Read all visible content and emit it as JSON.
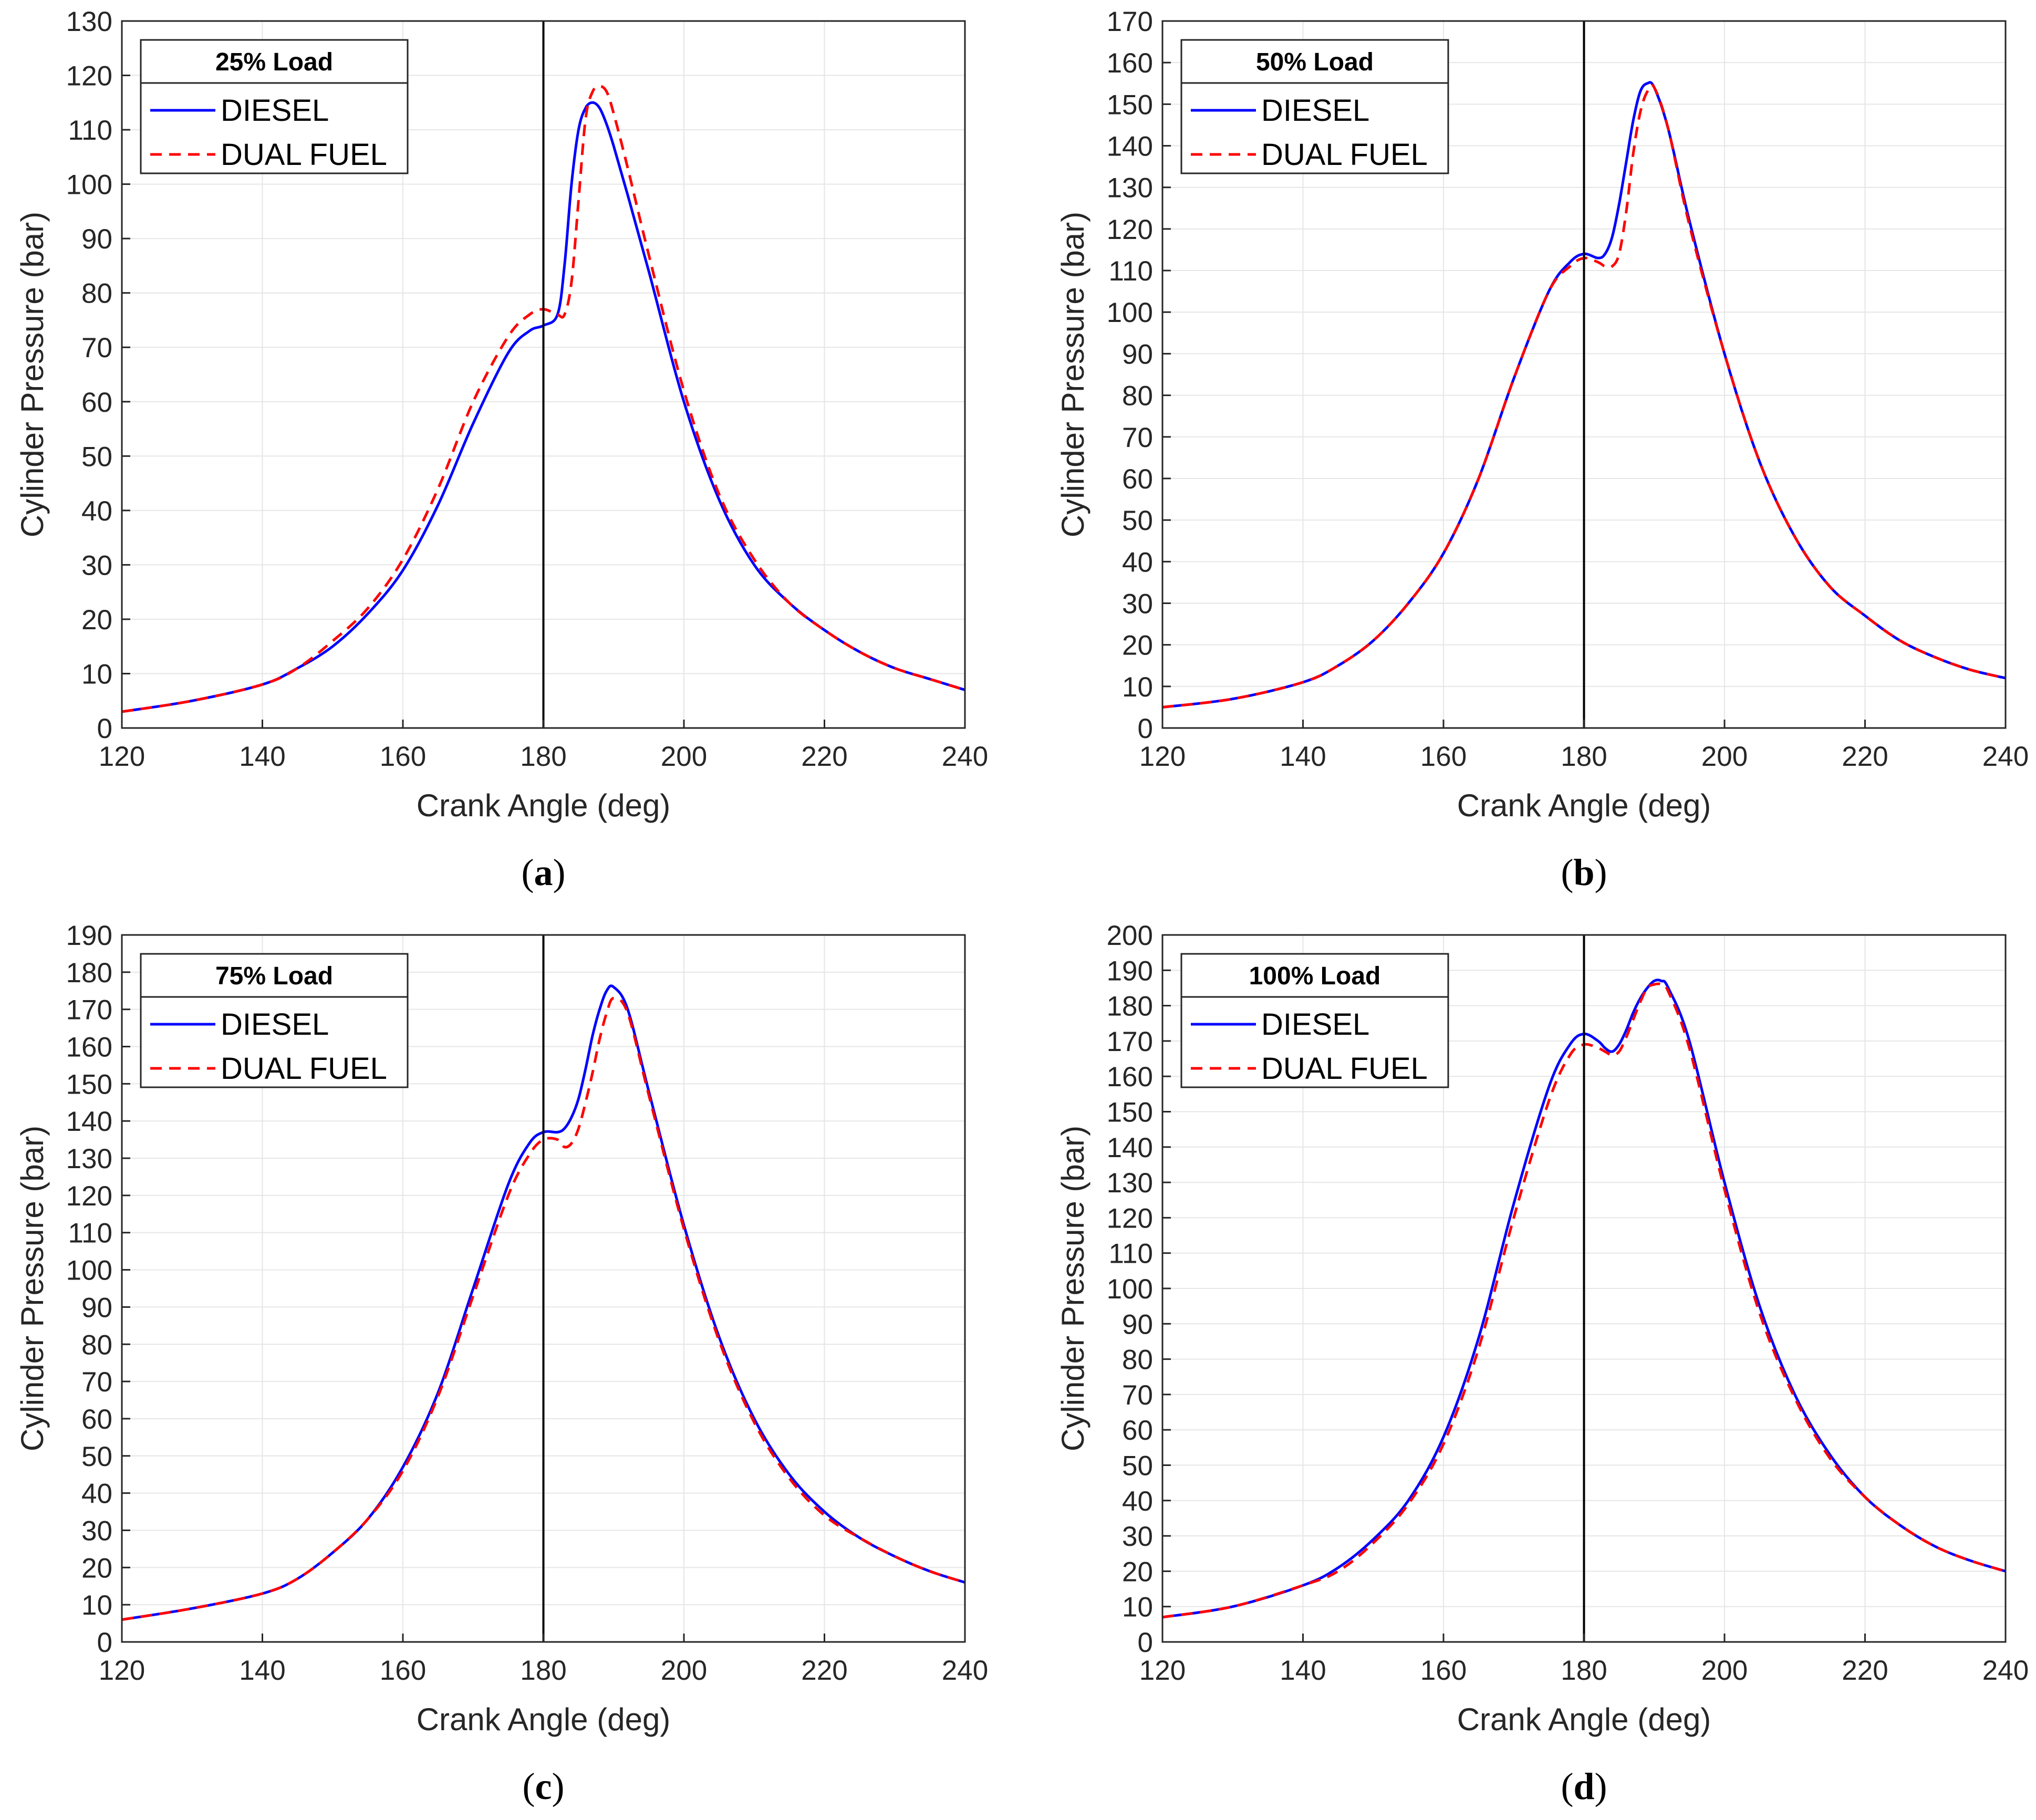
{
  "figure": {
    "panels_count": 4
  },
  "chart_data": [
    {
      "id": "a",
      "caption_letter": "a",
      "type": "line",
      "legend_title": "25% Load",
      "xlabel": "Crank Angle (deg)",
      "ylabel": "Cylinder Pressure (bar)",
      "xlim": [
        120,
        240
      ],
      "ylim": [
        0,
        130
      ],
      "xticks": [
        120,
        140,
        160,
        180,
        200,
        220,
        240
      ],
      "yticks": [
        0,
        10,
        20,
        30,
        40,
        50,
        60,
        70,
        80,
        90,
        100,
        110,
        120,
        130
      ],
      "grid": true,
      "legend_position": "top-left",
      "vertical_line_x": 180,
      "series": [
        {
          "name": "DIESEL",
          "color": "#0000ff",
          "style": "solid",
          "x": [
            120,
            130,
            140,
            145,
            150,
            155,
            160,
            165,
            170,
            175,
            178,
            180,
            182,
            183,
            184,
            185,
            186,
            187,
            188,
            189,
            190,
            192,
            195,
            200,
            205,
            210,
            215,
            220,
            225,
            230,
            235,
            240
          ],
          "y": [
            3,
            5,
            8,
            11,
            15,
            21,
            29,
            41,
            56,
            69,
            73,
            74,
            76,
            85,
            100,
            110,
            114,
            115,
            114,
            111,
            107,
            98,
            84,
            60,
            42,
            30,
            23,
            18,
            14,
            11,
            9,
            7
          ]
        },
        {
          "name": "DUAL FUEL",
          "color": "#ff0000",
          "style": "dashed",
          "x": [
            120,
            130,
            140,
            145,
            150,
            155,
            160,
            165,
            170,
            175,
            178,
            180,
            182,
            183,
            184,
            185,
            186,
            187,
            188,
            189,
            190,
            192,
            195,
            200,
            205,
            210,
            215,
            220,
            225,
            230,
            235,
            240
          ],
          "y": [
            3,
            5,
            8,
            11,
            16,
            22,
            31,
            44,
            60,
            72,
            76,
            77,
            76,
            76,
            82,
            97,
            112,
            117,
            118,
            117,
            113,
            103,
            87,
            62,
            43,
            31,
            23,
            18,
            14,
            11,
            9,
            7
          ]
        }
      ]
    },
    {
      "id": "b",
      "caption_letter": "b",
      "type": "line",
      "legend_title": "50% Load",
      "xlabel": "Crank Angle (deg)",
      "ylabel": "Cylinder Pressure (bar)",
      "xlim": [
        120,
        240
      ],
      "ylim": [
        0,
        170
      ],
      "xticks": [
        120,
        140,
        160,
        180,
        200,
        220,
        240
      ],
      "yticks": [
        0,
        10,
        20,
        30,
        40,
        50,
        60,
        70,
        80,
        90,
        100,
        110,
        120,
        130,
        140,
        150,
        160,
        170
      ],
      "grid": true,
      "legend_position": "top-left",
      "vertical_line_x": 180,
      "series": [
        {
          "name": "DIESEL",
          "color": "#0000ff",
          "style": "solid",
          "x": [
            120,
            130,
            140,
            145,
            150,
            155,
            160,
            165,
            170,
            175,
            178,
            180,
            182,
            183,
            184,
            185,
            186,
            187,
            188,
            189,
            190,
            192,
            195,
            200,
            205,
            210,
            215,
            220,
            225,
            230,
            235,
            240
          ],
          "y": [
            5,
            7,
            11,
            15,
            21,
            30,
            42,
            60,
            84,
            105,
            112,
            114,
            113,
            114,
            118,
            126,
            136,
            146,
            153,
            155,
            154,
            144,
            122,
            90,
            64,
            46,
            34,
            27,
            21,
            17,
            14,
            12
          ]
        },
        {
          "name": "DUAL FUEL",
          "color": "#ff0000",
          "style": "dashed",
          "x": [
            120,
            130,
            140,
            145,
            150,
            155,
            160,
            165,
            170,
            175,
            178,
            180,
            182,
            183,
            184,
            185,
            186,
            187,
            188,
            189,
            190,
            192,
            195,
            200,
            205,
            210,
            215,
            220,
            225,
            230,
            235,
            240
          ],
          "y": [
            5,
            7,
            11,
            15,
            21,
            30,
            42,
            60,
            84,
            105,
            111,
            113,
            112,
            111,
            111,
            114,
            124,
            138,
            148,
            153,
            154,
            144,
            121,
            90,
            64,
            46,
            34,
            27,
            21,
            17,
            14,
            12
          ]
        }
      ]
    },
    {
      "id": "c",
      "caption_letter": "c",
      "type": "line",
      "legend_title": "75% Load",
      "xlabel": "Crank Angle (deg)",
      "ylabel": "Cylinder Pressure (bar)",
      "xlim": [
        120,
        240
      ],
      "ylim": [
        0,
        190
      ],
      "xticks": [
        120,
        140,
        160,
        180,
        200,
        220,
        240
      ],
      "yticks": [
        0,
        10,
        20,
        30,
        40,
        50,
        60,
        70,
        80,
        90,
        100,
        110,
        120,
        130,
        140,
        150,
        160,
        170,
        180,
        190
      ],
      "grid": true,
      "legend_position": "top-left",
      "vertical_line_x": 180,
      "series": [
        {
          "name": "DIESEL",
          "color": "#0000ff",
          "style": "solid",
          "x": [
            120,
            130,
            140,
            145,
            150,
            155,
            160,
            165,
            170,
            175,
            178,
            180,
            182,
            183,
            184,
            185,
            186,
            187,
            188,
            189,
            190,
            192,
            195,
            200,
            205,
            210,
            215,
            220,
            225,
            230,
            235,
            240
          ],
          "y": [
            6,
            9,
            13,
            17,
            24,
            33,
            47,
            67,
            95,
            123,
            134,
            137,
            137,
            138,
            141,
            146,
            154,
            163,
            170,
            175,
            176,
            170,
            148,
            112,
            82,
            60,
            45,
            35,
            28,
            23,
            19,
            16
          ]
        },
        {
          "name": "DUAL FUEL",
          "color": "#ff0000",
          "style": "dashed",
          "x": [
            120,
            130,
            140,
            145,
            150,
            155,
            160,
            165,
            170,
            175,
            178,
            180,
            182,
            183,
            184,
            185,
            186,
            187,
            188,
            189,
            190,
            192,
            195,
            200,
            205,
            210,
            215,
            220,
            225,
            230,
            235,
            240
          ],
          "y": [
            6,
            9,
            13,
            17,
            24,
            33,
            46,
            66,
            93,
            120,
            131,
            135,
            135,
            133,
            134,
            138,
            145,
            153,
            162,
            169,
            173,
            169,
            147,
            111,
            81,
            59,
            44,
            34,
            28,
            23,
            19,
            16
          ]
        }
      ]
    },
    {
      "id": "d",
      "caption_letter": "d",
      "type": "line",
      "legend_title": "100% Load",
      "xlabel": "Crank Angle (deg)",
      "ylabel": "Cylinder Pressure (bar)",
      "xlim": [
        120,
        240
      ],
      "ylim": [
        0,
        200
      ],
      "xticks": [
        120,
        140,
        160,
        180,
        200,
        220,
        240
      ],
      "yticks": [
        0,
        10,
        20,
        30,
        40,
        50,
        60,
        70,
        80,
        90,
        100,
        110,
        120,
        130,
        140,
        150,
        160,
        170,
        180,
        190,
        200
      ],
      "grid": true,
      "legend_position": "top-left",
      "vertical_line_x": 180,
      "series": [
        {
          "name": "DIESEL",
          "color": "#0000ff",
          "style": "solid",
          "x": [
            120,
            130,
            140,
            145,
            150,
            155,
            160,
            165,
            170,
            175,
            178,
            180,
            182,
            183,
            184,
            185,
            186,
            187,
            188,
            189,
            190,
            191,
            192,
            195,
            200,
            205,
            210,
            215,
            220,
            225,
            230,
            235,
            240
          ],
          "y": [
            7,
            10,
            16,
            21,
            29,
            40,
            58,
            86,
            124,
            157,
            169,
            172,
            170,
            168,
            167,
            169,
            173,
            178,
            182,
            185,
            187,
            187,
            185,
            170,
            130,
            95,
            70,
            53,
            41,
            33,
            27,
            23,
            20
          ]
        },
        {
          "name": "DUAL FUEL",
          "color": "#ff0000",
          "style": "dashed",
          "x": [
            120,
            130,
            140,
            145,
            150,
            155,
            160,
            165,
            170,
            175,
            178,
            180,
            182,
            183,
            184,
            185,
            186,
            187,
            188,
            189,
            190,
            191,
            192,
            195,
            200,
            205,
            210,
            215,
            220,
            225,
            230,
            235,
            240
          ],
          "y": [
            7,
            10,
            16,
            20,
            28,
            39,
            56,
            83,
            120,
            153,
            166,
            169,
            168,
            167,
            166,
            167,
            171,
            176,
            181,
            185,
            186,
            186,
            184,
            168,
            128,
            93,
            69,
            52,
            41,
            33,
            27,
            23,
            20
          ]
        }
      ]
    }
  ]
}
